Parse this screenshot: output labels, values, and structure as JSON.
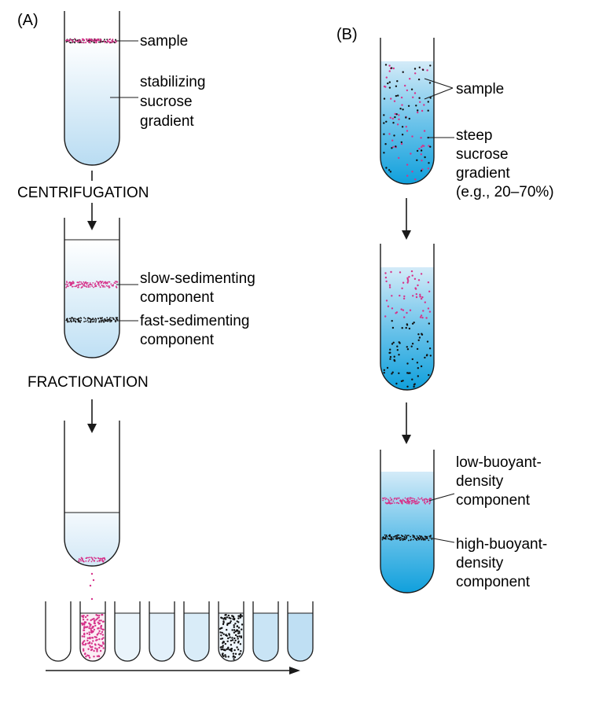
{
  "panel_a": {
    "tag": "(A)",
    "sample_label": "sample",
    "gradient_label": [
      "stabilizing",
      "sucrose",
      "gradient"
    ],
    "step1": "CENTRIFUGATION",
    "slow_label": [
      "slow-sedimenting",
      "component"
    ],
    "fast_label": [
      "fast-sedimenting",
      "component"
    ],
    "step2": "FRACTIONATION"
  },
  "panel_b": {
    "tag": "(B)",
    "sample_label": "sample",
    "gradient_label": [
      "steep",
      "sucrose",
      "gradient",
      "(e.g., 20–70%)"
    ],
    "low_label": [
      "low-buoyant-",
      "density",
      "component"
    ],
    "high_label": [
      "high-buoyant-",
      "density",
      "component"
    ]
  },
  "colors": {
    "outline": "#1a1a1a",
    "pink_particle": "#d6338a",
    "black_particle": "#111111",
    "light_blue": "#e8f3fb",
    "mid_blue": "#a9d4ee",
    "deep_blue": "#1ea6dd"
  }
}
